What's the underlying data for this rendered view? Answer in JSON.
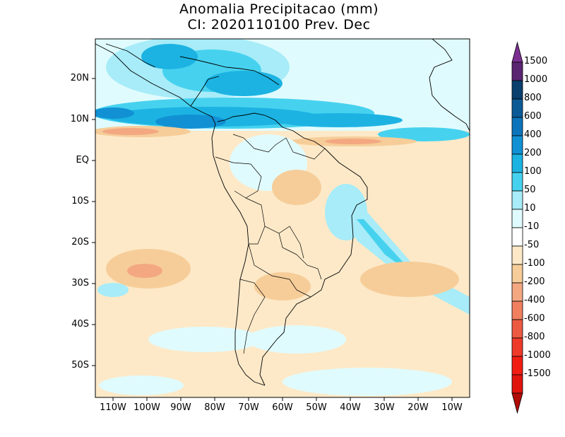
{
  "title": {
    "line1": "Anomalia Precipitacao (mm)",
    "line2": "CI: 2020110100 Prev. Dec"
  },
  "axes": {
    "lat_labels": [
      "20N",
      "10N",
      "EQ",
      "10S",
      "20S",
      "30S",
      "40S",
      "50S"
    ],
    "lon_labels": [
      "110W",
      "100W",
      "90W",
      "80W",
      "70W",
      "60W",
      "50W",
      "40W",
      "30W",
      "20W",
      "10W"
    ]
  },
  "colorbar": {
    "labels": [
      "1500",
      "1000",
      "800",
      "600",
      "400",
      "200",
      "100",
      "50",
      "10",
      "-10",
      "-50",
      "-100",
      "-200",
      "-400",
      "-600",
      "-800",
      "-1000",
      "-1500"
    ],
    "colors": [
      "#7b2f90",
      "#5a2672",
      "#0a3f6e",
      "#0b5a96",
      "#0c74bb",
      "#1191d4",
      "#1cb3e2",
      "#46d2ef",
      "#a7ecf8",
      "#e0fbfd",
      "#ffffff",
      "#fde9c8",
      "#f6cd99",
      "#f3a882",
      "#f08060",
      "#ec5a42",
      "#ee3a2a",
      "#f21d12",
      "#e0140c",
      "#b00d08"
    ]
  }
}
